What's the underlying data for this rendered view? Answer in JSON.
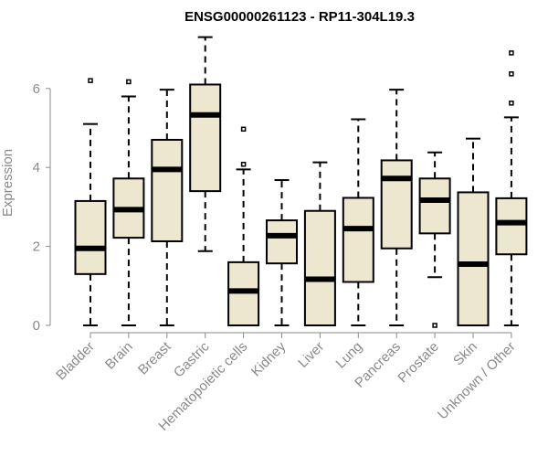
{
  "chart_data": {
    "type": "boxplot",
    "title": "ENSG00000261123 - RP11-304L19.3",
    "xlabel": "",
    "ylabel": "Expression",
    "ylim": [
      0,
      7.3
    ],
    "yticks": [
      0,
      2,
      4,
      6
    ],
    "box_fill": "#EDE7CF",
    "categories": [
      "Bladder",
      "Brain",
      "Breast",
      "Gastric",
      "Hematopoietic cells",
      "Kidney",
      "Liver",
      "Lung",
      "Pancreas",
      "Prostate",
      "Skin",
      "Unknown / Other"
    ],
    "boxes": [
      {
        "min": 0,
        "q1": 1.3,
        "median": 1.95,
        "q3": 3.15,
        "max": 5.1,
        "outliers": [
          6.2
        ]
      },
      {
        "min": 0,
        "q1": 2.22,
        "median": 2.93,
        "q3": 3.72,
        "max": 5.8,
        "outliers": [
          6.17
        ]
      },
      {
        "min": 0,
        "q1": 2.13,
        "median": 3.95,
        "q3": 4.7,
        "max": 5.97,
        "outliers": []
      },
      {
        "min": 1.88,
        "q1": 3.4,
        "median": 5.33,
        "q3": 6.1,
        "max": 7.3,
        "outliers": []
      },
      {
        "min": 0,
        "q1": 0,
        "median": 0.87,
        "q3": 1.6,
        "max": 3.95,
        "outliers": [
          4.08,
          4.97
        ]
      },
      {
        "min": 0,
        "q1": 1.57,
        "median": 2.27,
        "q3": 2.66,
        "max": 3.68,
        "outliers": []
      },
      {
        "min": 0,
        "q1": 0,
        "median": 1.17,
        "q3": 2.9,
        "max": 4.13,
        "outliers": []
      },
      {
        "min": 0,
        "q1": 1.1,
        "median": 2.45,
        "q3": 3.23,
        "max": 5.22,
        "outliers": []
      },
      {
        "min": 0,
        "q1": 1.95,
        "median": 3.72,
        "q3": 4.18,
        "max": 5.97,
        "outliers": []
      },
      {
        "min": 1.22,
        "q1": 2.33,
        "median": 3.17,
        "q3": 3.72,
        "max": 4.38,
        "outliers": [
          0
        ]
      },
      {
        "min": 0,
        "q1": 0,
        "median": 1.55,
        "q3": 3.37,
        "max": 4.73,
        "outliers": []
      },
      {
        "min": 0,
        "q1": 1.8,
        "median": 2.6,
        "q3": 3.22,
        "max": 5.27,
        "outliers": [
          5.63,
          6.37,
          6.9
        ]
      }
    ]
  }
}
